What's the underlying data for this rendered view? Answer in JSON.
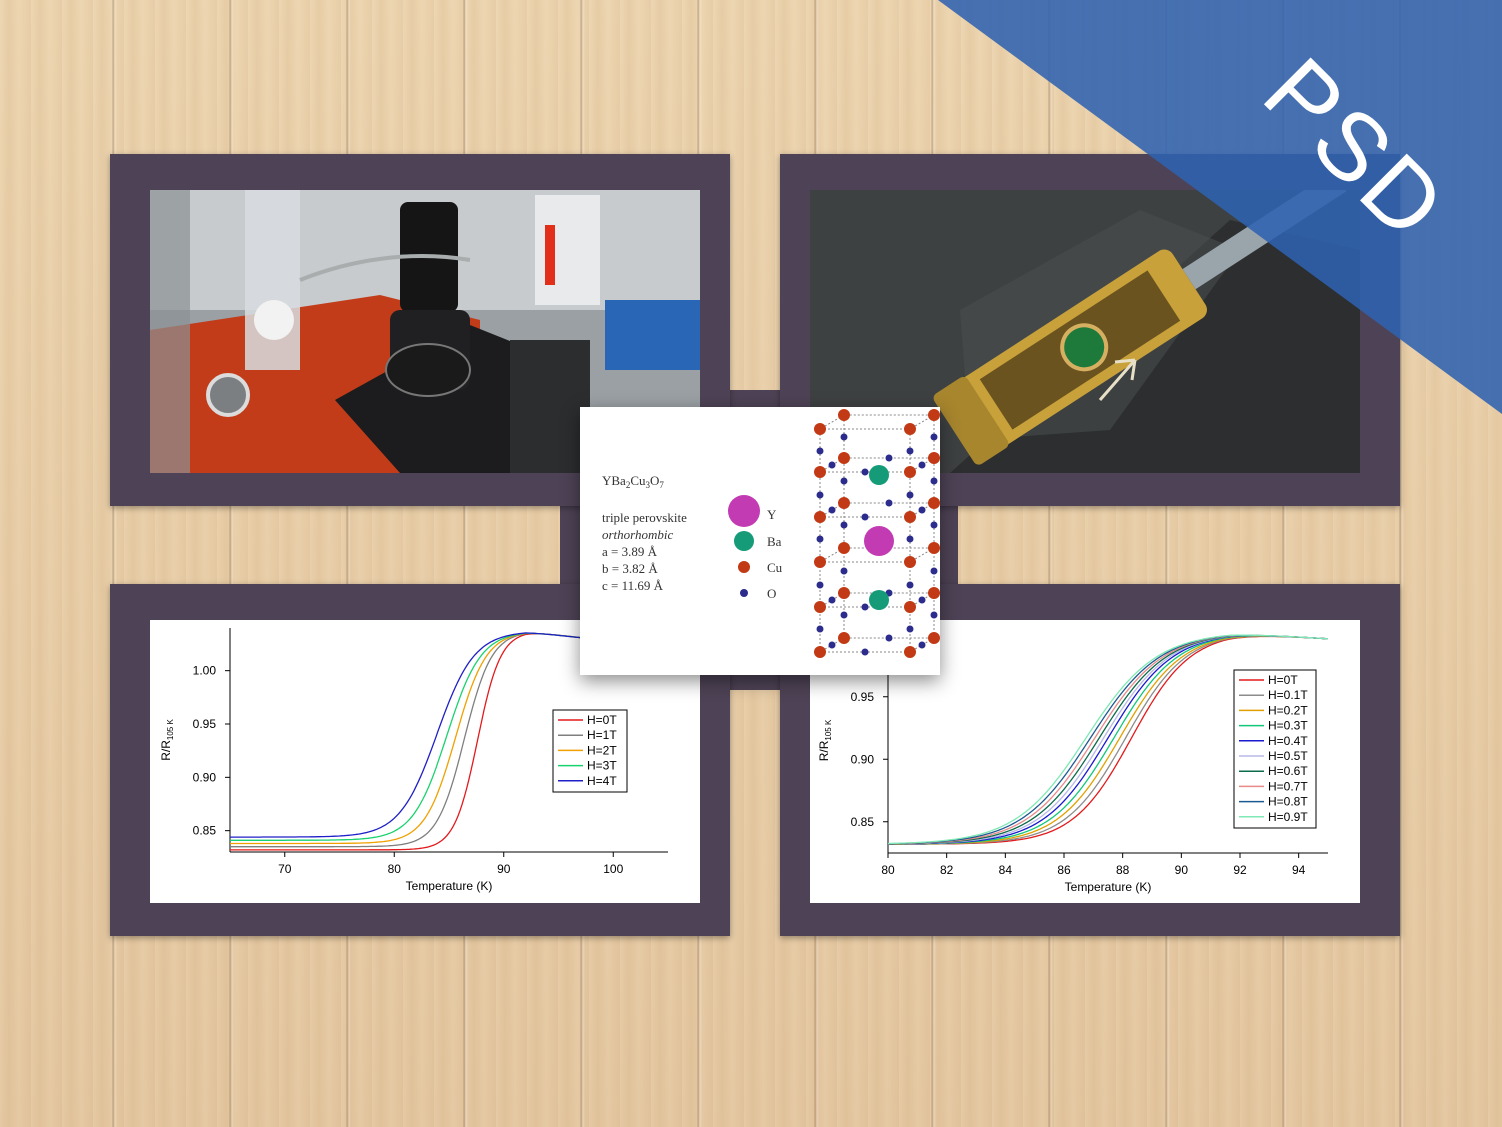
{
  "badge": {
    "text": "PSD",
    "color": "#3b6cb7"
  },
  "photos": [
    {
      "name": "microscope-stage-photo"
    },
    {
      "name": "sample-probe-photo"
    }
  ],
  "crystal_card": {
    "formula": "YBa2Cu3O7",
    "structure": "triple perovskite",
    "system": "orthorhombic",
    "lattice": [
      "a = 3.89 Å",
      "b = 3.82 Å",
      "c = 11.69 Å"
    ],
    "legend": [
      {
        "label": "Y",
        "color": "#c23bb2"
      },
      {
        "label": "Ba",
        "color": "#169b78"
      },
      {
        "label": "Cu",
        "color": "#c23a15"
      },
      {
        "label": "O",
        "color": "#2c2c8c"
      }
    ]
  },
  "chart_data": [
    {
      "type": "line",
      "xlabel": "Temperature (K)",
      "ylabel": "R/R105 K",
      "xlim": [
        65,
        105
      ],
      "ylim": [
        0.83,
        1.04
      ],
      "xticks": [
        70,
        80,
        90,
        100
      ],
      "yticks": [
        0.85,
        0.9,
        0.95,
        1.0
      ],
      "legend_position": "right",
      "series": [
        {
          "name": "H=0T",
          "color": "#e31a1c",
          "onset": 87.6,
          "width": 1.05,
          "base": 0.832
        },
        {
          "name": "H=1T",
          "color": "#7f7f7f",
          "onset": 86.4,
          "width": 1.25,
          "base": 0.835
        },
        {
          "name": "H=2T",
          "color": "#f0a000",
          "onset": 85.6,
          "width": 1.4,
          "base": 0.838
        },
        {
          "name": "H=3T",
          "color": "#19d26e",
          "onset": 84.8,
          "width": 1.55,
          "base": 0.841
        },
        {
          "name": "H=4T",
          "color": "#1f1fc8",
          "onset": 83.9,
          "width": 1.7,
          "base": 0.844
        }
      ]
    },
    {
      "type": "line",
      "xlabel": "Temperature (K)",
      "ylabel": "R/R105 K",
      "xlim": [
        80,
        95
      ],
      "ylim": [
        0.825,
        1.005
      ],
      "xticks": [
        80,
        82,
        84,
        86,
        88,
        90,
        92,
        94
      ],
      "yticks": [
        0.85,
        0.9,
        0.95
      ],
      "legend_position": "right",
      "series": [
        {
          "name": "H=0T",
          "color": "#e31a1c",
          "onset": 88.3,
          "width": 1.0,
          "base": 0.832
        },
        {
          "name": "H=0.1T",
          "color": "#8c8c8c",
          "onset": 88.1,
          "width": 1.03,
          "base": 0.832
        },
        {
          "name": "H=0.2T",
          "color": "#e0a100",
          "onset": 87.9,
          "width": 1.06,
          "base": 0.832
        },
        {
          "name": "H=0.3T",
          "color": "#12c77a",
          "onset": 87.7,
          "width": 1.08,
          "base": 0.832
        },
        {
          "name": "H=0.4T",
          "color": "#1a1ad0",
          "onset": 87.5,
          "width": 1.1,
          "base": 0.832
        },
        {
          "name": "H=0.5T",
          "color": "#b8b8e8",
          "onset": 87.35,
          "width": 1.12,
          "base": 0.832
        },
        {
          "name": "H=0.6T",
          "color": "#0c6b4a",
          "onset": 87.2,
          "width": 1.14,
          "base": 0.832
        },
        {
          "name": "H=0.7T",
          "color": "#e88a8a",
          "onset": 87.05,
          "width": 1.16,
          "base": 0.832
        },
        {
          "name": "H=0.8T",
          "color": "#1e5a92",
          "onset": 86.9,
          "width": 1.18,
          "base": 0.832
        },
        {
          "name": "H=0.9T",
          "color": "#7fe8b4",
          "onset": 86.75,
          "width": 1.2,
          "base": 0.832
        }
      ]
    }
  ]
}
